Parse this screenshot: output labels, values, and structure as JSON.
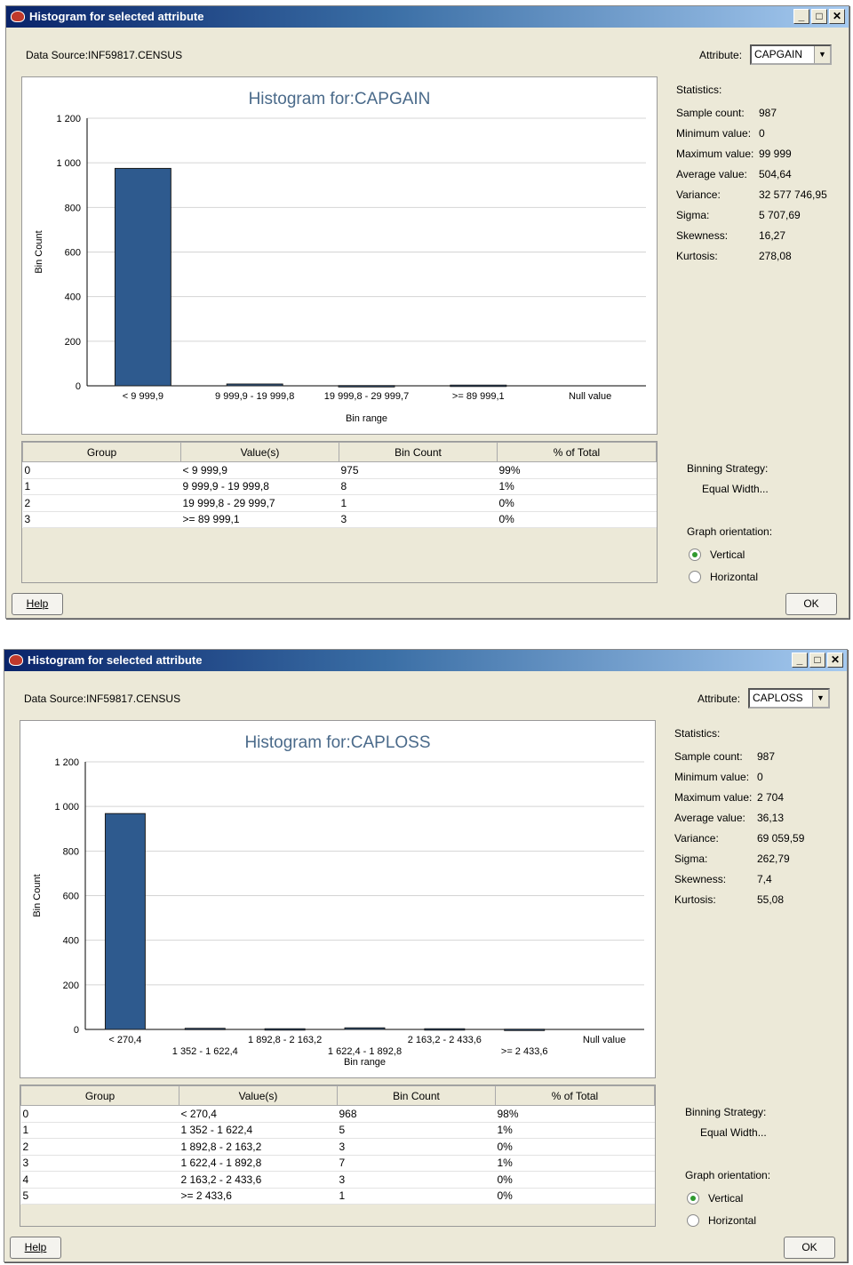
{
  "windows": [
    {
      "title": "Histogram for selected attribute",
      "data_source": "Data Source:INF59817.CENSUS",
      "attribute_label": "Attribute:",
      "attribute_value": "CAPGAIN",
      "stats_header": "Statistics:",
      "stats": [
        {
          "k": "Sample count:",
          "v": "987"
        },
        {
          "k": "Minimum value:",
          "v": "0"
        },
        {
          "k": "Maximum value:",
          "v": "99 999"
        },
        {
          "k": "Average value:",
          "v": "504,64"
        },
        {
          "k": "Variance:",
          "v": "32 577 746,95"
        },
        {
          "k": "Sigma:",
          "v": "5 707,69"
        },
        {
          "k": "Skewness:",
          "v": "16,27"
        },
        {
          "k": "Kurtosis:",
          "v": "278,08"
        }
      ],
      "table": {
        "headers": [
          "Group",
          "Value(s)",
          "Bin Count",
          "% of Total"
        ],
        "rows": [
          [
            "0",
            "< 9 999,9",
            "975",
            "99%"
          ],
          [
            "1",
            "9 999,9 - 19 999,8",
            "8",
            "1%"
          ],
          [
            "2",
            "19 999,8 - 29 999,7",
            "1",
            "0%"
          ],
          [
            "3",
            ">= 89 999,1",
            "3",
            "0%"
          ]
        ]
      },
      "binning_label": "Binning Strategy:",
      "binning_value": "Equal Width...",
      "orientation_label": "Graph orientation:",
      "orientation_options": [
        "Vertical",
        "Horizontal"
      ],
      "orientation_selected": "Vertical",
      "help_label": "Help",
      "ok_label": "OK",
      "chart_data": {
        "type": "bar",
        "title": "Histogram for:CAPGAIN",
        "xlabel": "Bin range",
        "ylabel": "Bin Count",
        "ylim": [
          0,
          1200
        ],
        "yticks": [
          "0",
          "200",
          "400",
          "600",
          "800",
          "1 000",
          "1 200"
        ],
        "categories": [
          "< 9 999,9",
          "9 999,9 - 19 999,8",
          "19 999,8 - 29 999,7",
          ">= 89 999,1",
          "Null value"
        ],
        "values": [
          975,
          8,
          1,
          3,
          0
        ],
        "label_rows": [
          0,
          0,
          0,
          0,
          0
        ],
        "bar_color": "#2e5a8e"
      }
    },
    {
      "title": "Histogram for selected attribute",
      "data_source": "Data Source:INF59817.CENSUS",
      "attribute_label": "Attribute:",
      "attribute_value": "CAPLOSS",
      "stats_header": "Statistics:",
      "stats": [
        {
          "k": "Sample count:",
          "v": "987"
        },
        {
          "k": "Minimum value:",
          "v": "0"
        },
        {
          "k": "Maximum value:",
          "v": "2 704"
        },
        {
          "k": "Average value:",
          "v": "36,13"
        },
        {
          "k": "Variance:",
          "v": "69 059,59"
        },
        {
          "k": "Sigma:",
          "v": "262,79"
        },
        {
          "k": "Skewness:",
          "v": "7,4"
        },
        {
          "k": "Kurtosis:",
          "v": "55,08"
        }
      ],
      "table": {
        "headers": [
          "Group",
          "Value(s)",
          "Bin Count",
          "% of Total"
        ],
        "rows": [
          [
            "0",
            "< 270,4",
            "968",
            "98%"
          ],
          [
            "1",
            "1 352 - 1 622,4",
            "5",
            "1%"
          ],
          [
            "2",
            "1 892,8 - 2 163,2",
            "3",
            "0%"
          ],
          [
            "3",
            "1 622,4 - 1 892,8",
            "7",
            "1%"
          ],
          [
            "4",
            "2 163,2 - 2 433,6",
            "3",
            "0%"
          ],
          [
            "5",
            ">= 2 433,6",
            "1",
            "0%"
          ]
        ]
      },
      "binning_label": "Binning Strategy:",
      "binning_value": "Equal Width...",
      "orientation_label": "Graph orientation:",
      "orientation_options": [
        "Vertical",
        "Horizontal"
      ],
      "orientation_selected": "Vertical",
      "help_label": "Help",
      "ok_label": "OK",
      "chart_data": {
        "type": "bar",
        "title": "Histogram for:CAPLOSS",
        "xlabel": "Bin range",
        "ylabel": "Bin Count",
        "ylim": [
          0,
          1200
        ],
        "yticks": [
          "0",
          "200",
          "400",
          "600",
          "800",
          "1 000",
          "1 200"
        ],
        "categories": [
          "< 270,4",
          "1 352 - 1 622,4",
          "1 892,8 - 2 163,2",
          "1 622,4 - 1 892,8",
          "2 163,2 - 2 433,6",
          ">= 2 433,6",
          "Null value"
        ],
        "values": [
          968,
          5,
          3,
          7,
          3,
          1,
          0
        ],
        "label_rows": [
          0,
          1,
          0,
          1,
          0,
          1,
          0
        ],
        "bar_color": "#2e5a8e"
      }
    }
  ]
}
